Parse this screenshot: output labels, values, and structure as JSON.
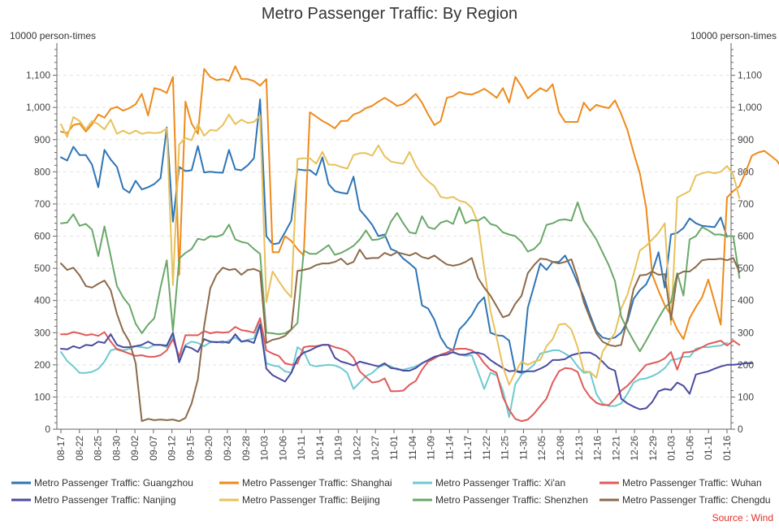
{
  "chart_data": {
    "type": "line",
    "title": "Metro Passenger Traffic: By Region",
    "ylabel_left": "10000 person-times",
    "ylabel_right": "10000 person-times",
    "ylim": [
      0,
      1200
    ],
    "yticks": [
      0,
      100,
      200,
      300,
      400,
      500,
      600,
      700,
      800,
      900,
      "1,000",
      "1,100"
    ],
    "xticks": [
      "08-17",
      "08-22",
      "08-25",
      "08-30",
      "09-02",
      "09-07",
      "09-12",
      "09-15",
      "09-20",
      "09-23",
      "09-28",
      "10-03",
      "10-06",
      "10-11",
      "10-14",
      "10-19",
      "10-22",
      "10-27",
      "11-01",
      "11-04",
      "11-09",
      "11-14",
      "11-17",
      "11-22",
      "11-25",
      "11-30",
      "12-05",
      "12-08",
      "12-13",
      "12-16",
      "12-21",
      "12-26",
      "12-29",
      "01-03",
      "01-06",
      "01-11",
      "01-16"
    ],
    "source": "Source : Wind",
    "grid": true,
    "legend_position": "bottom",
    "series": [
      {
        "name": "Metro Passenger Traffic: Guangzhou",
        "color": "#2e75b6",
        "values": [
          845,
          835,
          878,
          852,
          852,
          822,
          752,
          868,
          838,
          815,
          748,
          735,
          772,
          745,
          752,
          762,
          780,
          938,
          645,
          815,
          802,
          805,
          880,
          798,
          800,
          798,
          797,
          868,
          808,
          805,
          820,
          842,
          1025,
          600,
          575,
          578,
          612,
          648,
          808,
          805,
          805,
          790,
          845,
          762,
          740,
          735,
          732,
          785,
          682,
          660,
          635,
          600,
          605,
          560,
          552,
          530,
          515,
          498,
          385,
          375,
          340,
          285,
          255,
          245,
          310,
          330,
          355,
          390,
          410,
          300,
          292,
          290,
          275,
          180,
          175,
          378,
          445,
          515,
          495,
          520,
          520,
          540,
          500,
          455,
          410,
          355,
          305,
          285,
          280,
          285,
          300,
          335,
          405,
          432,
          450,
          490,
          550,
          440,
          605,
          610,
          625,
          655,
          640,
          632,
          630,
          628,
          658,
          598
        ]
      },
      {
        "name": "Metro Passenger Traffic: Shanghai",
        "color": "#ee8a1b",
        "values": [
          925,
          920,
          945,
          950,
          925,
          948,
          978,
          968,
          995,
          1002,
          990,
          998,
          1010,
          1042,
          975,
          1060,
          1055,
          1045,
          1095,
          480,
          1018,
          950,
          918,
          1120,
          1095,
          1085,
          1088,
          1082,
          1128,
          1088,
          1088,
          1082,
          1068,
          1088,
          550,
          550,
          600,
          585,
          560,
          540,
          985,
          972,
          958,
          948,
          935,
          958,
          958,
          978,
          985,
          998,
          1005,
          1018,
          1030,
          1018,
          1005,
          1010,
          1025,
          1042,
          1015,
          978,
          945,
          958,
          1030,
          1035,
          1048,
          1042,
          1040,
          1048,
          1058,
          1045,
          1030,
          1060,
          1015,
          1095,
          1065,
          1028,
          1045,
          1060,
          1050,
          1072,
          985,
          955,
          955,
          955,
          1015,
          990,
          1008,
          1002,
          998,
          1022,
          980,
          930,
          860,
          795,
          690,
          480,
          430,
          385,
          355,
          310,
          280,
          345,
          380,
          410,
          465,
          395,
          325,
          720,
          740,
          755,
          800,
          850,
          860,
          865,
          850,
          835,
          808
        ]
      },
      {
        "name": "Metro Passenger Traffic: Xi'an",
        "color": "#6dcad0",
        "values": [
          240,
          212,
          195,
          175,
          175,
          178,
          188,
          210,
          245,
          250,
          245,
          250,
          258,
          255,
          252,
          262,
          262,
          255,
          290,
          220,
          262,
          272,
          268,
          258,
          270,
          272,
          268,
          275,
          285,
          272,
          278,
          282,
          335,
          205,
          198,
          195,
          180,
          175,
          255,
          242,
          200,
          195,
          198,
          200,
          198,
          190,
          175,
          125,
          145,
          165,
          175,
          192,
          200,
          195,
          185,
          185,
          190,
          195,
          205,
          215,
          225,
          230,
          238,
          238,
          232,
          228,
          230,
          178,
          125,
          175,
          168,
          120,
          38,
          140,
          170,
          185,
          200,
          235,
          240,
          245,
          245,
          235,
          222,
          195,
          175,
          178,
          110,
          80,
          72,
          72,
          80,
          110,
          145,
          155,
          158,
          165,
          175,
          190,
          215,
          218,
          225,
          225,
          250,
          255,
          255,
          258,
          260,
          268
        ]
      },
      {
        "name": "Metro Passenger Traffic: Wuhan",
        "color": "#e05a5a",
        "values": [
          295,
          295,
          302,
          298,
          292,
          295,
          290,
          302,
          272,
          248,
          242,
          235,
          228,
          230,
          225,
          225,
          230,
          245,
          280,
          225,
          292,
          292,
          292,
          305,
          298,
          302,
          300,
          302,
          318,
          308,
          305,
          300,
          345,
          245,
          235,
          228,
          205,
          200,
          205,
          255,
          258,
          258,
          262,
          262,
          255,
          250,
          242,
          222,
          180,
          162,
          145,
          148,
          158,
          118,
          118,
          120,
          138,
          150,
          185,
          210,
          220,
          232,
          238,
          248,
          250,
          250,
          245,
          232,
          205,
          185,
          175,
          100,
          60,
          32,
          25,
          30,
          48,
          72,
          95,
          145,
          180,
          190,
          188,
          178,
          128,
          100,
          82,
          75,
          75,
          95,
          120,
          135,
          155,
          178,
          200,
          205,
          210,
          220,
          240,
          185,
          238,
          240,
          245,
          255,
          265,
          270,
          275,
          260,
          275,
          262
        ]
      },
      {
        "name": "Metro Passenger Traffic: Nanjing",
        "color": "#4a4aa2",
        "values": [
          250,
          248,
          258,
          252,
          262,
          260,
          272,
          268,
          295,
          262,
          255,
          255,
          258,
          262,
          272,
          262,
          262,
          260,
          300,
          208,
          258,
          252,
          240,
          280,
          272,
          270,
          272,
          268,
          295,
          272,
          275,
          268,
          325,
          188,
          168,
          158,
          148,
          175,
          220,
          238,
          245,
          255,
          262,
          262,
          222,
          210,
          205,
          198,
          210,
          205,
          200,
          195,
          205,
          190,
          188,
          182,
          182,
          190,
          205,
          215,
          225,
          230,
          232,
          240,
          232,
          232,
          238,
          238,
          232,
          215,
          202,
          190,
          180,
          182,
          178,
          180,
          180,
          188,
          198,
          215,
          215,
          218,
          230,
          235,
          238,
          238,
          228,
          210,
          190,
          182,
          95,
          80,
          70,
          62,
          65,
          85,
          118,
          125,
          122,
          145,
          135,
          110,
          170,
          175,
          180,
          188,
          195,
          200,
          200,
          202,
          205,
          205
        ]
      },
      {
        "name": "Metro Passenger Traffic: Beijing",
        "color": "#e8c15a",
        "values": [
          948,
          908,
          970,
          958,
          932,
          958,
          948,
          932,
          962,
          918,
          928,
          918,
          928,
          918,
          922,
          920,
          922,
          935,
          448,
          885,
          905,
          898,
          948,
          912,
          930,
          928,
          945,
          978,
          948,
          962,
          952,
          955,
          975,
          395,
          490,
          460,
          432,
          410,
          840,
          842,
          842,
          825,
          862,
          822,
          822,
          815,
          810,
          852,
          858,
          858,
          850,
          882,
          848,
          832,
          828,
          825,
          862,
          820,
          790,
          770,
          755,
          722,
          718,
          722,
          710,
          705,
          688,
          640,
          500,
          368,
          285,
          195,
          138,
          178,
          210,
          200,
          210,
          215,
          258,
          280,
          325,
          328,
          310,
          255,
          180,
          178,
          160,
          240,
          270,
          300,
          375,
          418,
          482,
          555,
          570,
          590,
          610,
          640,
          325,
          720,
          730,
          740,
          788,
          795,
          800,
          795,
          800,
          818,
          790,
          718
        ]
      },
      {
        "name": "Metro Passenger Traffic: Shenzhen",
        "color": "#6aa86a",
        "values": [
          640,
          642,
          668,
          632,
          638,
          620,
          538,
          630,
          538,
          445,
          410,
          385,
          328,
          298,
          325,
          345,
          440,
          525,
          305,
          530,
          548,
          560,
          592,
          588,
          600,
          598,
          605,
          636,
          590,
          582,
          578,
          560,
          545,
          300,
          298,
          295,
          298,
          310,
          330,
          555,
          545,
          545,
          558,
          572,
          542,
          548,
          558,
          570,
          590,
          618,
          588,
          590,
          598,
          645,
          672,
          640,
          612,
          608,
          662,
          628,
          622,
          642,
          648,
          638,
          690,
          640,
          650,
          648,
          660,
          638,
          632,
          612,
          605,
          600,
          582,
          552,
          560,
          580,
          635,
          640,
          650,
          652,
          648,
          705,
          648,
          620,
          590,
          550,
          510,
          460,
          350,
          310,
          275,
          242,
          275,
          310,
          345,
          378,
          395,
          485,
          415,
          590,
          600,
          628,
          618,
          605,
          605,
          600,
          600,
          470
        ]
      },
      {
        "name": "Metro Passenger Traffic: Chengdu",
        "color": "#8c6a4a",
        "values": [
          515,
          495,
          502,
          478,
          445,
          440,
          452,
          462,
          432,
          358,
          305,
          272,
          205,
          25,
          32,
          28,
          30,
          28,
          30,
          25,
          35,
          80,
          155,
          320,
          438,
          480,
          502,
          495,
          498,
          480,
          495,
          498,
          490,
          268,
          278,
          282,
          290,
          310,
          492,
          495,
          500,
          510,
          515,
          515,
          520,
          530,
          512,
          520,
          558,
          530,
          532,
          532,
          548,
          540,
          550,
          545,
          540,
          548,
          535,
          530,
          540,
          525,
          512,
          508,
          512,
          520,
          532,
          470,
          440,
          415,
          382,
          348,
          355,
          390,
          415,
          485,
          510,
          530,
          528,
          520,
          515,
          520,
          528,
          470,
          395,
          345,
          298,
          272,
          262,
          258,
          262,
          345,
          435,
          478,
          480,
          490,
          480,
          482,
          340,
          480,
          490,
          490,
          505,
          525,
          528,
          528,
          530,
          525,
          532,
          488
        ]
      }
    ]
  }
}
